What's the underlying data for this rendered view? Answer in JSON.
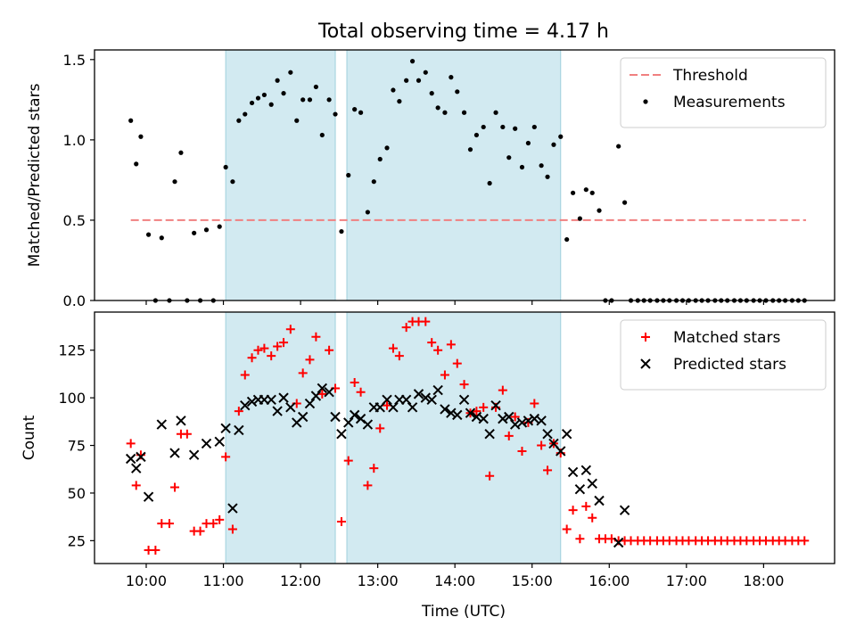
{
  "figure": {
    "title": "Total observing time = 4.17 h",
    "xlabel": "Time (UTC)",
    "xticks": [
      {
        "hour": 10,
        "label": "10:00"
      },
      {
        "hour": 11,
        "label": "11:00"
      },
      {
        "hour": 12,
        "label": "12:00"
      },
      {
        "hour": 13,
        "label": "13:00"
      },
      {
        "hour": 14,
        "label": "14:00"
      },
      {
        "hour": 15,
        "label": "15:00"
      },
      {
        "hour": 16,
        "label": "16:00"
      },
      {
        "hour": 17,
        "label": "17:00"
      },
      {
        "hour": 18,
        "label": "18:00"
      }
    ],
    "xlim": [
      9.33,
      18.92
    ],
    "shaded_intervals": [
      [
        11.03,
        12.45
      ],
      [
        12.6,
        15.37
      ]
    ],
    "colors": {
      "shade": "#add8e6",
      "threshold": "#f08080",
      "measurement": "#000000",
      "matched": "#ff0000",
      "predicted": "#000000"
    }
  },
  "chart_data": [
    {
      "type": "scatter",
      "ylabel": "Matched/Predicted stars",
      "ylim": [
        0,
        1.56
      ],
      "yticks": [
        "0.0",
        "0.5",
        "1.0",
        "1.5"
      ],
      "yticks_values": [
        0,
        0.5,
        1.0,
        1.5
      ],
      "legend_position": "top-right",
      "threshold": {
        "name": "Threshold",
        "value": 0.5,
        "x_range": [
          9.8,
          18.55
        ]
      },
      "series": [
        {
          "name": "Measurements",
          "marker": "dot",
          "x": [
            9.8,
            9.87,
            9.93,
            10.03,
            10.12,
            10.2,
            10.3,
            10.37,
            10.45,
            10.53,
            10.62,
            10.7,
            10.78,
            10.87,
            10.95,
            11.03,
            11.12,
            11.2,
            11.28,
            11.37,
            11.45,
            11.53,
            11.62,
            11.7,
            11.78,
            11.87,
            11.95,
            12.03,
            12.12,
            12.2,
            12.28,
            12.37,
            12.45,
            12.53,
            12.62,
            12.7,
            12.78,
            12.87,
            12.95,
            13.03,
            13.12,
            13.2,
            13.28,
            13.37,
            13.45,
            13.53,
            13.62,
            13.7,
            13.78,
            13.87,
            13.95,
            14.03,
            14.12,
            14.2,
            14.28,
            14.37,
            14.45,
            14.53,
            14.62,
            14.7,
            14.78,
            14.87,
            14.95,
            15.03,
            15.12,
            15.2,
            15.28,
            15.37,
            15.45,
            15.53,
            15.62,
            15.7,
            15.78,
            15.87,
            15.95,
            16.03,
            16.12,
            16.2,
            16.28,
            16.37,
            16.45,
            16.53,
            16.62,
            16.7,
            16.78,
            16.87,
            16.95,
            17.03,
            17.12,
            17.2,
            17.28,
            17.37,
            17.45,
            17.53,
            17.62,
            17.7,
            17.78,
            17.87,
            17.95,
            18.03,
            18.12,
            18.2,
            18.28,
            18.37,
            18.45,
            18.53
          ],
          "y": [
            1.12,
            0.85,
            1.02,
            0.41,
            0.0,
            0.39,
            0.0,
            0.74,
            0.92,
            0.0,
            0.42,
            0.0,
            0.44,
            0.0,
            0.46,
            0.83,
            0.74,
            1.12,
            1.16,
            1.23,
            1.26,
            1.28,
            1.22,
            1.37,
            1.29,
            1.42,
            1.12,
            1.25,
            1.25,
            1.33,
            1.03,
            1.25,
            1.16,
            0.43,
            0.78,
            1.19,
            1.17,
            0.55,
            0.74,
            0.88,
            0.95,
            1.31,
            1.24,
            1.37,
            1.49,
            1.37,
            1.42,
            1.29,
            1.2,
            1.17,
            1.39,
            1.3,
            1.17,
            0.94,
            1.03,
            1.08,
            0.73,
            1.17,
            1.08,
            0.89,
            1.07,
            0.83,
            0.98,
            1.08,
            0.84,
            0.77,
            0.97,
            1.02,
            0.38,
            0.67,
            0.51,
            0.69,
            0.67,
            0.56,
            0.0,
            0.0,
            0.96,
            0.61,
            0.0,
            0.0,
            0.0,
            0.0,
            0.0,
            0.0,
            0.0,
            0.0,
            0.0,
            0.0,
            0.0,
            0.0,
            0.0,
            0.0,
            0.0,
            0.0,
            0.0,
            0.0,
            0.0,
            0.0,
            0.0,
            0.0,
            0.0,
            0.0,
            0.0,
            0.0,
            0.0,
            0.0
          ]
        }
      ]
    },
    {
      "type": "scatter",
      "ylabel": "Count",
      "ylim": [
        13,
        145
      ],
      "yticks": [
        "25",
        "50",
        "75",
        "100",
        "125"
      ],
      "yticks_values": [
        25,
        50,
        75,
        100,
        125
      ],
      "legend_position": "top-right",
      "series": [
        {
          "name": "Matched stars",
          "marker": "plus",
          "x": [
            9.8,
            9.87,
            9.93,
            10.03,
            10.12,
            10.2,
            10.3,
            10.37,
            10.45,
            10.53,
            10.62,
            10.7,
            10.78,
            10.87,
            10.95,
            11.03,
            11.12,
            11.2,
            11.28,
            11.37,
            11.45,
            11.53,
            11.62,
            11.7,
            11.78,
            11.87,
            11.95,
            12.03,
            12.12,
            12.2,
            12.28,
            12.37,
            12.45,
            12.53,
            12.62,
            12.7,
            12.78,
            12.87,
            12.95,
            13.03,
            13.12,
            13.2,
            13.28,
            13.37,
            13.45,
            13.53,
            13.62,
            13.7,
            13.78,
            13.87,
            13.95,
            14.03,
            14.12,
            14.2,
            14.28,
            14.37,
            14.45,
            14.53,
            14.62,
            14.7,
            14.78,
            14.87,
            14.95,
            15.03,
            15.12,
            15.2,
            15.28,
            15.37,
            15.45,
            15.53,
            15.62,
            15.7,
            15.78,
            15.87,
            15.95,
            16.03,
            16.12,
            16.2,
            16.28,
            16.37,
            16.45,
            16.53,
            16.62,
            16.7,
            16.78,
            16.87,
            16.95,
            17.03,
            17.12,
            17.2,
            17.28,
            17.37,
            17.45,
            17.53,
            17.62,
            17.7,
            17.78,
            17.87,
            17.95,
            18.03,
            18.12,
            18.2,
            18.28,
            18.37,
            18.45,
            18.53
          ],
          "y": [
            76,
            54,
            70,
            20,
            20,
            34,
            34,
            53,
            81,
            81,
            30,
            30,
            34,
            34,
            36,
            69,
            31,
            93,
            112,
            121,
            125,
            126,
            122,
            127,
            129,
            136,
            97,
            113,
            120,
            132,
            102,
            125,
            105,
            35,
            67,
            108,
            103,
            54,
            63,
            84,
            96,
            126,
            122,
            137,
            140,
            140,
            140,
            129,
            125,
            112,
            128,
            118,
            107,
            92,
            93,
            95,
            59,
            95,
            104,
            80,
            90,
            72,
            87,
            97,
            75,
            62,
            76,
            71,
            31,
            41,
            26,
            43,
            37,
            26,
            26,
            26,
            25,
            25,
            25,
            25,
            25,
            25,
            25,
            25,
            25,
            25,
            25,
            25,
            25,
            25,
            25,
            25,
            25,
            25,
            25,
            25,
            25,
            25,
            25,
            25,
            25,
            25,
            25,
            25,
            25,
            25
          ]
        },
        {
          "name": "Predicted stars",
          "marker": "x",
          "x": [
            9.8,
            9.87,
            9.93,
            10.03,
            10.2,
            10.37,
            10.45,
            10.62,
            10.78,
            10.95,
            11.03,
            11.12,
            11.2,
            11.28,
            11.37,
            11.45,
            11.53,
            11.62,
            11.7,
            11.78,
            11.87,
            11.95,
            12.03,
            12.12,
            12.2,
            12.28,
            12.37,
            12.45,
            12.53,
            12.62,
            12.7,
            12.78,
            12.87,
            12.95,
            13.03,
            13.12,
            13.2,
            13.28,
            13.37,
            13.45,
            13.53,
            13.62,
            13.7,
            13.78,
            13.87,
            13.95,
            14.03,
            14.12,
            14.2,
            14.28,
            14.37,
            14.45,
            14.53,
            14.62,
            14.7,
            14.78,
            14.87,
            14.95,
            15.03,
            15.12,
            15.2,
            15.28,
            15.37,
            15.45,
            15.53,
            15.62,
            15.7,
            15.78,
            15.87,
            16.12,
            16.2
          ],
          "y": [
            68,
            63,
            69,
            48,
            86,
            71,
            88,
            70,
            76,
            77,
            84,
            42,
            83,
            96,
            98,
            99,
            99,
            99,
            93,
            100,
            95,
            87,
            90,
            97,
            101,
            105,
            103,
            90,
            81,
            87,
            91,
            89,
            86,
            95,
            95,
            99,
            95,
            99,
            99,
            95,
            102,
            100,
            99,
            104,
            94,
            92,
            91,
            99,
            92,
            90,
            89,
            81,
            96,
            89,
            90,
            86,
            87,
            88,
            89,
            88,
            81,
            76,
            72,
            81,
            61,
            52,
            62,
            55,
            46,
            24,
            41
          ]
        }
      ]
    }
  ]
}
